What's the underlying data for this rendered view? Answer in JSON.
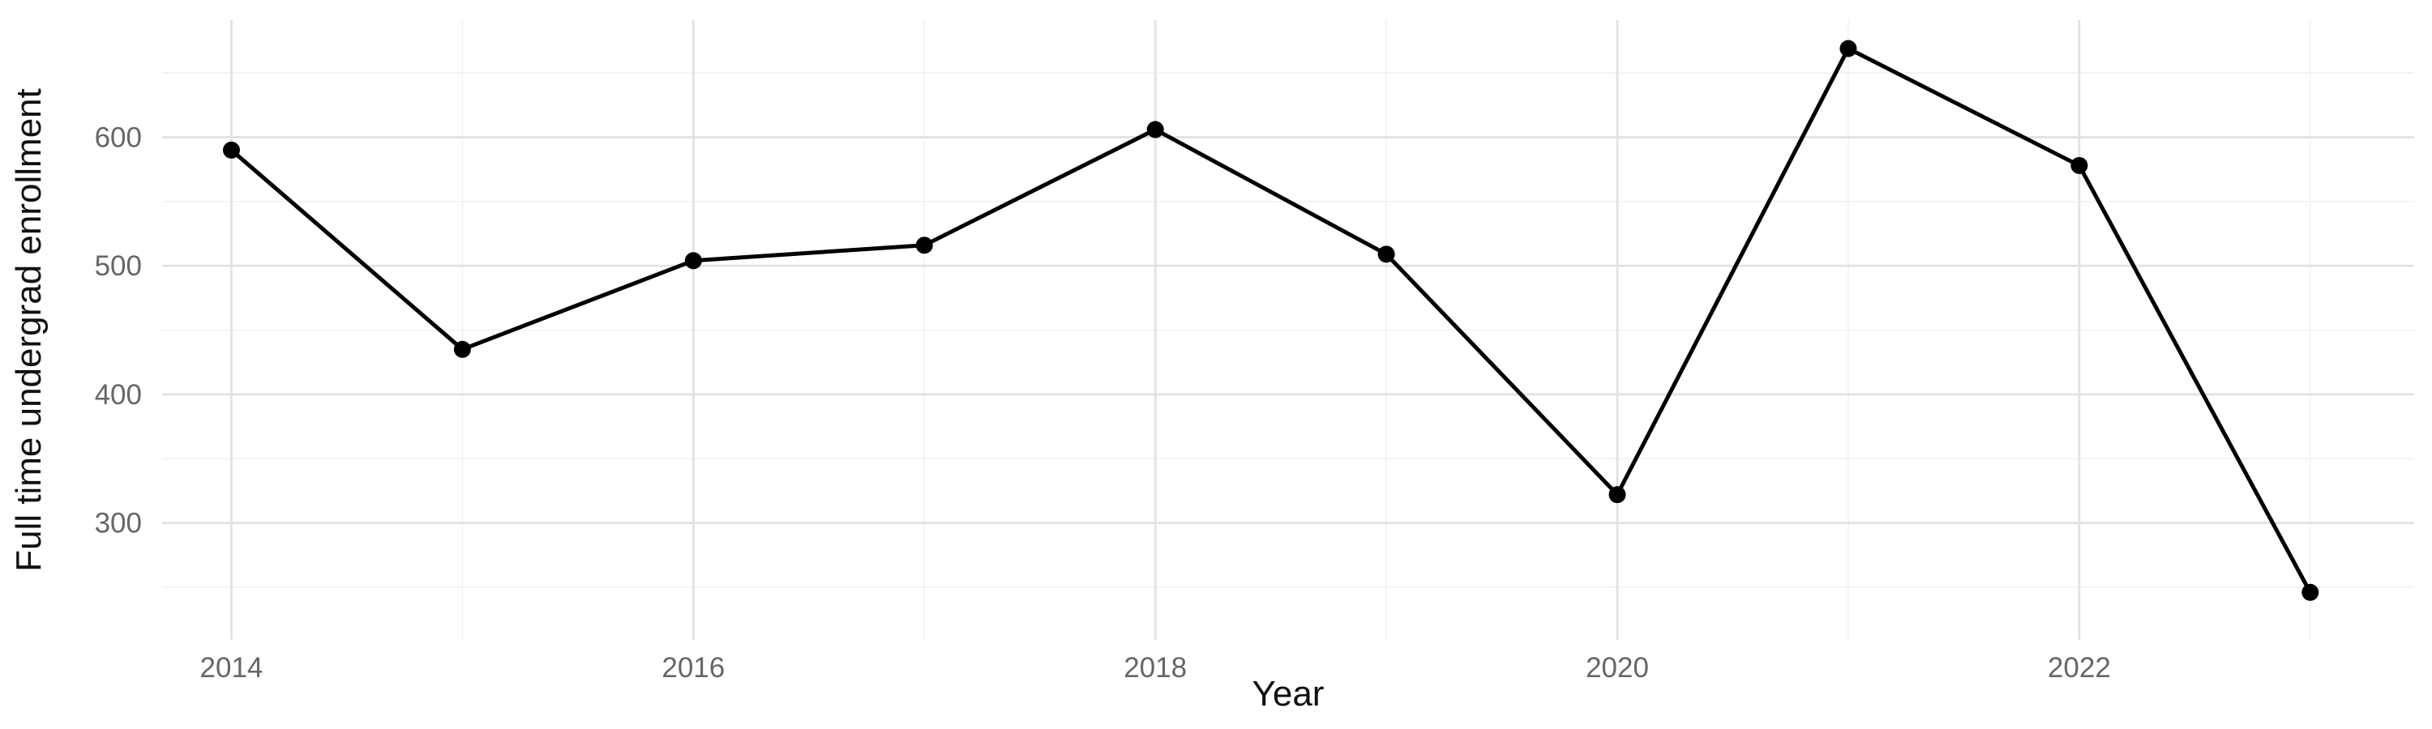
{
  "chart_data": {
    "type": "line",
    "title": "",
    "xlabel": "Year",
    "ylabel": "Full time undergrad enrollment",
    "x": [
      2014,
      2015,
      2016,
      2017,
      2018,
      2019,
      2020,
      2021,
      2022,
      2023
    ],
    "series": [
      {
        "name": "Full time undergrad enrollment",
        "values": [
          590,
          435,
          504,
          516,
          606,
          509,
          322,
          669,
          578,
          246
        ]
      }
    ],
    "x_major_ticks": [
      2014,
      2016,
      2018,
      2020,
      2022
    ],
    "x_minor_ticks": [
      2015,
      2017,
      2019,
      2021,
      2023
    ],
    "y_major_ticks": [
      300,
      400,
      500,
      600
    ],
    "y_minor_ticks": [
      250,
      350,
      450,
      550,
      650
    ],
    "xlim": [
      2013.7,
      2023.45
    ],
    "ylim": [
      209,
      691
    ],
    "grid": "major+minor",
    "legend": "none",
    "marker": "filled-circle",
    "colors": {
      "line": "#000000",
      "point": "#000000",
      "grid_major": "#e2e2e2",
      "grid_minor": "#f1f1f1",
      "tick_label": "#666666",
      "axis_title": "#111111",
      "background": "#ffffff"
    }
  }
}
